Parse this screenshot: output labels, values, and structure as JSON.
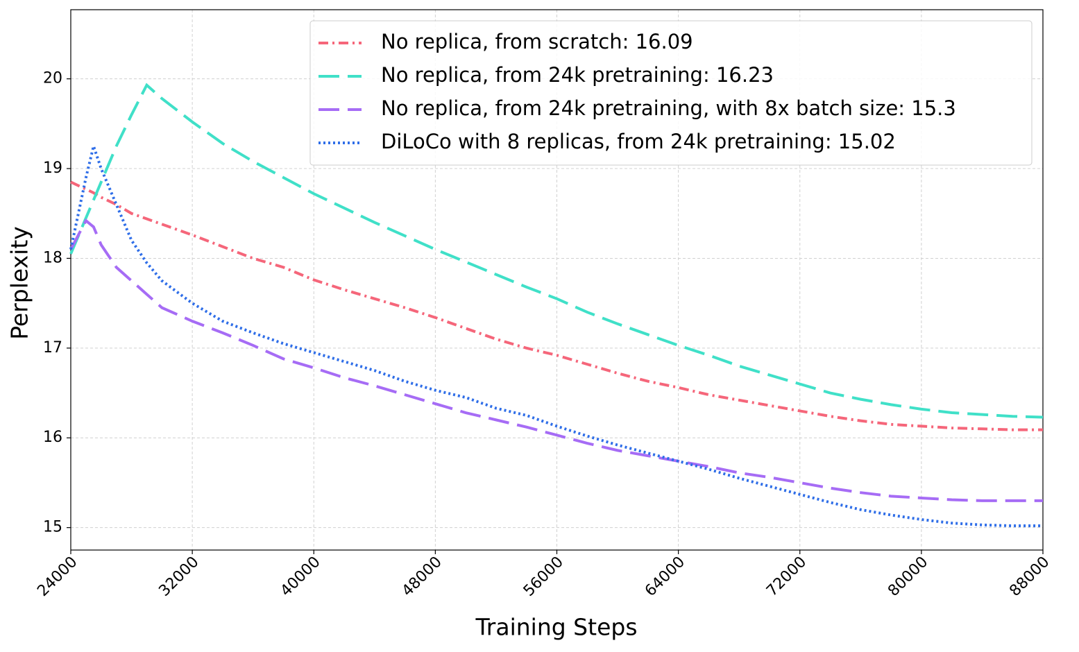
{
  "chart_data": {
    "type": "line",
    "x_label": "Training Steps",
    "y_label": "Perplexity",
    "x": [
      24000,
      25000,
      25500,
      26000,
      27000,
      28000,
      29000,
      30000,
      32000,
      34000,
      36000,
      38000,
      40000,
      42000,
      44000,
      46000,
      48000,
      50000,
      52000,
      54000,
      56000,
      58000,
      60000,
      62000,
      64000,
      66000,
      68000,
      70000,
      72000,
      74000,
      76000,
      78000,
      80000,
      82000,
      84000,
      86000,
      88000
    ],
    "series": [
      {
        "name": "No replica, from scratch: 16.09",
        "color": "#f5667a",
        "linestyle": "dashdot",
        "values": [
          18.85,
          18.77,
          18.73,
          18.68,
          18.6,
          18.5,
          18.44,
          18.38,
          18.26,
          18.13,
          18.0,
          17.9,
          17.76,
          17.65,
          17.55,
          17.45,
          17.34,
          17.22,
          17.1,
          17.0,
          16.92,
          16.82,
          16.72,
          16.63,
          16.56,
          16.48,
          16.42,
          16.36,
          16.3,
          16.24,
          16.19,
          16.15,
          16.13,
          16.11,
          16.1,
          16.09,
          16.09
        ]
      },
      {
        "name": "No replica, from 24k pretraining: 16.23",
        "color": "#40e0c8",
        "linestyle": "dashed",
        "values": [
          18.05,
          18.45,
          18.65,
          18.85,
          19.25,
          19.6,
          19.93,
          19.78,
          19.52,
          19.28,
          19.08,
          18.9,
          18.72,
          18.56,
          18.4,
          18.25,
          18.1,
          17.96,
          17.82,
          17.68,
          17.55,
          17.4,
          17.27,
          17.15,
          17.03,
          16.92,
          16.8,
          16.7,
          16.6,
          16.5,
          16.43,
          16.37,
          16.32,
          16.28,
          16.26,
          16.24,
          16.23
        ]
      },
      {
        "name": "No replica, from 24k pretraining, with 8x batch size: 15.3",
        "color": "#a66cf5",
        "linestyle": "dashed",
        "values": [
          18.1,
          18.42,
          18.35,
          18.15,
          17.9,
          17.75,
          17.6,
          17.45,
          17.3,
          17.17,
          17.03,
          16.88,
          16.78,
          16.67,
          16.58,
          16.48,
          16.38,
          16.28,
          16.2,
          16.12,
          16.03,
          15.94,
          15.86,
          15.8,
          15.74,
          15.68,
          15.61,
          15.56,
          15.5,
          15.44,
          15.39,
          15.35,
          15.33,
          15.31,
          15.3,
          15.3,
          15.3
        ]
      },
      {
        "name": "DiLoCo with 8 replicas, from 24k pretraining: 15.02",
        "color": "#2f6ee8",
        "linestyle": "dotted",
        "values": [
          18.1,
          18.9,
          19.25,
          19.0,
          18.6,
          18.2,
          17.95,
          17.75,
          17.5,
          17.3,
          17.17,
          17.05,
          16.95,
          16.85,
          16.75,
          16.63,
          16.53,
          16.45,
          16.33,
          16.25,
          16.13,
          16.02,
          15.92,
          15.83,
          15.74,
          15.65,
          15.55,
          15.46,
          15.37,
          15.28,
          15.2,
          15.14,
          15.09,
          15.05,
          15.03,
          15.02,
          15.02
        ]
      }
    ],
    "xlim": [
      24000,
      88000
    ],
    "ylim": [
      14.75,
      20.77
    ],
    "xticks": [
      24000,
      32000,
      40000,
      48000,
      56000,
      64000,
      72000,
      80000,
      88000
    ],
    "yticks": [
      15,
      16,
      17,
      18,
      19,
      20
    ],
    "grid": true,
    "legend": "upper right"
  }
}
